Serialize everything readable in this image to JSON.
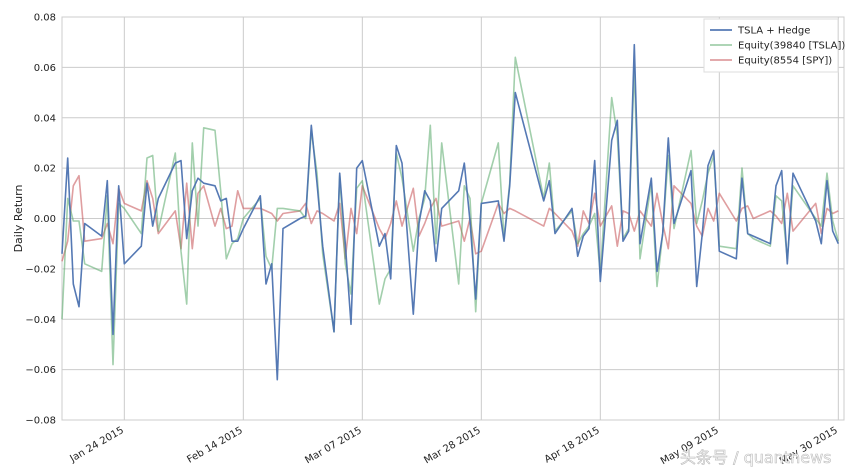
{
  "chart_data": {
    "type": "line",
    "ylabel": "Daily Return",
    "ylim": [
      -0.08,
      0.08
    ],
    "yticks": [
      -0.08,
      -0.06,
      -0.04,
      -0.02,
      0.0,
      0.02,
      0.04,
      0.06,
      0.08
    ],
    "ytick_labels": [
      "−0.08",
      "−0.06",
      "−0.04",
      "−0.02",
      "0.00",
      "0.02",
      "0.04",
      "0.06",
      "0.08"
    ],
    "xlim": [
      "2015-01-13",
      "2015-05-31"
    ],
    "xticks": [
      "2015-01-24",
      "2015-02-14",
      "2015-03-07",
      "2015-03-28",
      "2015-04-18",
      "2015-05-09",
      "2015-05-30"
    ],
    "xtick_labels": [
      "Jan 24 2015",
      "Feb 14 2015",
      "Mar 07 2015",
      "Mar 28 2015",
      "Apr 18 2015",
      "May 09 2015",
      "May 30 2015"
    ],
    "grid": true,
    "legend_position": "top-right",
    "series": [
      {
        "name": "TSLA + Hedge",
        "color": "#4c72b0",
        "x": [
          "2015-01-13",
          "2015-01-14",
          "2015-01-15",
          "2015-01-16",
          "2015-01-17",
          "2015-01-20",
          "2015-01-21",
          "2015-01-22",
          "2015-01-23",
          "2015-01-24",
          "2015-01-27",
          "2015-01-28",
          "2015-01-29",
          "2015-01-30",
          "2015-02-02",
          "2015-02-03",
          "2015-02-04",
          "2015-02-05",
          "2015-02-06",
          "2015-02-07",
          "2015-02-09",
          "2015-02-10",
          "2015-02-11",
          "2015-02-12",
          "2015-02-13",
          "2015-02-14",
          "2015-02-17",
          "2015-02-18",
          "2015-02-19",
          "2015-02-20",
          "2015-02-21",
          "2015-02-24",
          "2015-02-25",
          "2015-02-26",
          "2015-02-27",
          "2015-02-28",
          "2015-03-02",
          "2015-03-03",
          "2015-03-04",
          "2015-03-05",
          "2015-03-06",
          "2015-03-07",
          "2015-03-10",
          "2015-03-11",
          "2015-03-12",
          "2015-03-13",
          "2015-03-14",
          "2015-03-16",
          "2015-03-17",
          "2015-03-18",
          "2015-03-19",
          "2015-03-20",
          "2015-03-21",
          "2015-03-24",
          "2015-03-25",
          "2015-03-26",
          "2015-03-27",
          "2015-03-28",
          "2015-03-31",
          "2015-04-01",
          "2015-04-02",
          "2015-04-03",
          "2015-04-08",
          "2015-04-09",
          "2015-04-10",
          "2015-04-13",
          "2015-04-14",
          "2015-04-15",
          "2015-04-16",
          "2015-04-17",
          "2015-04-18",
          "2015-04-20",
          "2015-04-21",
          "2015-04-22",
          "2015-04-23",
          "2015-04-24",
          "2015-04-25",
          "2015-04-27",
          "2015-04-28",
          "2015-04-29",
          "2015-04-30",
          "2015-05-01",
          "2015-05-04",
          "2015-05-05",
          "2015-05-06",
          "2015-05-07",
          "2015-05-08",
          "2015-05-09",
          "2015-05-12",
          "2015-05-13",
          "2015-05-14",
          "2015-05-15",
          "2015-05-18",
          "2015-05-19",
          "2015-05-20",
          "2015-05-21",
          "2015-05-22",
          "2015-05-26",
          "2015-05-27",
          "2015-05-28",
          "2015-05-29",
          "2015-05-30"
        ],
        "y": [
          -0.014,
          0.024,
          -0.026,
          -0.035,
          -0.002,
          -0.007,
          0.015,
          -0.046,
          0.013,
          -0.018,
          -0.011,
          0.014,
          -0.003,
          0.008,
          0.022,
          0.023,
          -0.008,
          0.011,
          0.016,
          0.014,
          0.013,
          0.007,
          0.008,
          -0.009,
          -0.009,
          -0.004,
          0.009,
          -0.026,
          -0.018,
          -0.064,
          -0.004,
          0.0,
          0.001,
          0.037,
          0.014,
          -0.011,
          -0.045,
          0.018,
          -0.01,
          -0.042,
          0.02,
          0.023,
          -0.011,
          -0.006,
          -0.024,
          0.029,
          0.022,
          -0.038,
          -0.002,
          0.011,
          0.007,
          -0.017,
          0.004,
          0.011,
          0.022,
          -0.001,
          -0.032,
          0.006,
          0.007,
          -0.009,
          0.013,
          0.05,
          0.007,
          0.015,
          -0.006,
          0.004,
          -0.015,
          -0.007,
          -0.004,
          0.023,
          -0.025,
          0.031,
          0.039,
          -0.009,
          -0.005,
          0.069,
          -0.01,
          0.016,
          -0.021,
          -0.006,
          0.032,
          -0.002,
          0.019,
          -0.027,
          -0.006,
          0.021,
          0.027,
          -0.013,
          -0.016,
          0.016,
          -0.006,
          -0.007,
          -0.01,
          0.013,
          0.019,
          -0.018,
          0.018,
          -0.001,
          -0.01,
          0.015,
          -0.005,
          -0.01
        ]
      },
      {
        "name": "Equity(39840 [TSLA])",
        "color": "#55a868",
        "x": [
          "2015-01-13",
          "2015-01-14",
          "2015-01-15",
          "2015-01-16",
          "2015-01-17",
          "2015-01-20",
          "2015-01-21",
          "2015-01-22",
          "2015-01-23",
          "2015-01-24",
          "2015-01-27",
          "2015-01-28",
          "2015-01-29",
          "2015-01-30",
          "2015-02-02",
          "2015-02-03",
          "2015-02-04",
          "2015-02-05",
          "2015-02-06",
          "2015-02-07",
          "2015-02-09",
          "2015-02-10",
          "2015-02-11",
          "2015-02-12",
          "2015-02-13",
          "2015-02-14",
          "2015-02-17",
          "2015-02-18",
          "2015-02-19",
          "2015-02-20",
          "2015-02-21",
          "2015-02-24",
          "2015-02-25",
          "2015-02-26",
          "2015-02-27",
          "2015-02-28",
          "2015-03-02",
          "2015-03-03",
          "2015-03-04",
          "2015-03-05",
          "2015-03-06",
          "2015-03-07",
          "2015-03-10",
          "2015-03-11",
          "2015-03-12",
          "2015-03-13",
          "2015-03-14",
          "2015-03-16",
          "2015-03-17",
          "2015-03-18",
          "2015-03-19",
          "2015-03-20",
          "2015-03-21",
          "2015-03-24",
          "2015-03-25",
          "2015-03-26",
          "2015-03-27",
          "2015-03-28",
          "2015-03-31",
          "2015-04-01",
          "2015-04-02",
          "2015-04-03",
          "2015-04-08",
          "2015-04-09",
          "2015-04-10",
          "2015-04-13",
          "2015-04-14",
          "2015-04-15",
          "2015-04-16",
          "2015-04-17",
          "2015-04-18",
          "2015-04-20",
          "2015-04-21",
          "2015-04-22",
          "2015-04-23",
          "2015-04-24",
          "2015-04-25",
          "2015-04-27",
          "2015-04-28",
          "2015-04-29",
          "2015-04-30",
          "2015-05-01",
          "2015-05-04",
          "2015-05-05",
          "2015-05-06",
          "2015-05-07",
          "2015-05-08",
          "2015-05-09",
          "2015-05-12",
          "2015-05-13",
          "2015-05-14",
          "2015-05-15",
          "2015-05-18",
          "2015-05-19",
          "2015-05-20",
          "2015-05-21",
          "2015-05-22",
          "2015-05-26",
          "2015-05-27",
          "2015-05-28",
          "2015-05-29",
          "2015-05-30"
        ],
        "y": [
          -0.04,
          0.008,
          -0.001,
          -0.001,
          -0.018,
          -0.021,
          0.009,
          -0.058,
          0.006,
          0.004,
          -0.006,
          0.024,
          0.025,
          -0.005,
          0.026,
          -0.013,
          -0.034,
          0.03,
          -0.003,
          0.036,
          0.035,
          0.011,
          -0.016,
          -0.01,
          -0.008,
          0.0,
          0.008,
          -0.015,
          -0.02,
          0.004,
          0.004,
          0.003,
          0.0,
          0.035,
          0.018,
          -0.014,
          -0.045,
          0.017,
          -0.018,
          -0.03,
          0.012,
          0.015,
          -0.034,
          -0.024,
          -0.02,
          0.026,
          0.016,
          -0.013,
          0.0,
          0.008,
          0.037,
          -0.01,
          0.03,
          -0.026,
          0.013,
          0.008,
          -0.037,
          0.006,
          0.03,
          -0.008,
          0.014,
          0.064,
          0.008,
          0.022,
          -0.005,
          0.003,
          -0.01,
          -0.006,
          -0.003,
          0.002,
          -0.022,
          0.048,
          0.033,
          -0.008,
          -0.004,
          0.06,
          -0.016,
          0.014,
          -0.027,
          -0.006,
          0.025,
          -0.004,
          0.027,
          -0.002,
          0.007,
          0.018,
          0.025,
          -0.011,
          -0.012,
          0.02,
          -0.006,
          -0.008,
          -0.011,
          0.009,
          0.007,
          -0.016,
          0.013,
          0.0,
          -0.003,
          0.018,
          -0.001,
          -0.009
        ]
      },
      {
        "name": "Equity(8554 [SPY])",
        "color": "#c44e52",
        "x": [
          "2015-01-13",
          "2015-01-14",
          "2015-01-15",
          "2015-01-16",
          "2015-01-17",
          "2015-01-20",
          "2015-01-21",
          "2015-01-22",
          "2015-01-23",
          "2015-01-24",
          "2015-01-27",
          "2015-01-28",
          "2015-01-29",
          "2015-01-30",
          "2015-02-02",
          "2015-02-03",
          "2015-02-04",
          "2015-02-05",
          "2015-02-06",
          "2015-02-07",
          "2015-02-09",
          "2015-02-10",
          "2015-02-11",
          "2015-02-12",
          "2015-02-13",
          "2015-02-14",
          "2015-02-17",
          "2015-02-18",
          "2015-02-19",
          "2015-02-20",
          "2015-02-21",
          "2015-02-24",
          "2015-02-25",
          "2015-02-26",
          "2015-02-27",
          "2015-02-28",
          "2015-03-02",
          "2015-03-03",
          "2015-03-04",
          "2015-03-05",
          "2015-03-06",
          "2015-03-07",
          "2015-03-10",
          "2015-03-11",
          "2015-03-12",
          "2015-03-13",
          "2015-03-14",
          "2015-03-16",
          "2015-03-17",
          "2015-03-18",
          "2015-03-19",
          "2015-03-20",
          "2015-03-21",
          "2015-03-24",
          "2015-03-25",
          "2015-03-26",
          "2015-03-27",
          "2015-03-28",
          "2015-03-31",
          "2015-04-01",
          "2015-04-02",
          "2015-04-03",
          "2015-04-08",
          "2015-04-09",
          "2015-04-10",
          "2015-04-13",
          "2015-04-14",
          "2015-04-15",
          "2015-04-16",
          "2015-04-17",
          "2015-04-18",
          "2015-04-20",
          "2015-04-21",
          "2015-04-22",
          "2015-04-23",
          "2015-04-24",
          "2015-04-25",
          "2015-04-27",
          "2015-04-28",
          "2015-04-29",
          "2015-04-30",
          "2015-05-01",
          "2015-05-04",
          "2015-05-05",
          "2015-05-06",
          "2015-05-07",
          "2015-05-08",
          "2015-05-09",
          "2015-05-12",
          "2015-05-13",
          "2015-05-14",
          "2015-05-15",
          "2015-05-18",
          "2015-05-19",
          "2015-05-20",
          "2015-05-21",
          "2015-05-22",
          "2015-05-26",
          "2015-05-27",
          "2015-05-28",
          "2015-05-29",
          "2015-05-30"
        ],
        "y": [
          -0.017,
          -0.009,
          0.013,
          0.017,
          -0.009,
          -0.008,
          -0.002,
          -0.01,
          0.012,
          0.006,
          0.003,
          0.015,
          0.008,
          -0.006,
          0.003,
          -0.012,
          0.014,
          -0.012,
          0.01,
          0.013,
          -0.003,
          0.004,
          -0.004,
          -0.003,
          0.011,
          0.004,
          0.004,
          0.003,
          0.002,
          -0.001,
          0.002,
          0.003,
          0.006,
          -0.002,
          0.003,
          0.002,
          -0.001,
          0.006,
          -0.016,
          0.004,
          -0.006,
          0.013,
          -0.004,
          -0.008,
          -0.002,
          0.007,
          -0.003,
          0.012,
          -0.007,
          -0.002,
          0.004,
          0.008,
          -0.003,
          -0.001,
          -0.009,
          0.0,
          -0.014,
          -0.013,
          0.006,
          0.002,
          0.004,
          0.003,
          -0.003,
          0.004,
          0.002,
          -0.005,
          -0.011,
          0.003,
          -0.002,
          0.01,
          -0.003,
          0.005,
          -0.011,
          0.003,
          0.002,
          -0.005,
          0.003,
          -0.003,
          0.01,
          -0.002,
          -0.012,
          0.013,
          0.006,
          -0.003,
          -0.007,
          0.004,
          -0.001,
          0.01,
          -0.001,
          0.004,
          0.005,
          0.0,
          0.003,
          0.001,
          -0.002,
          0.01,
          -0.005,
          0.006,
          -0.006,
          0.004,
          0.002,
          0.003
        ]
      }
    ]
  },
  "watermark": "头条号 / quantnews"
}
